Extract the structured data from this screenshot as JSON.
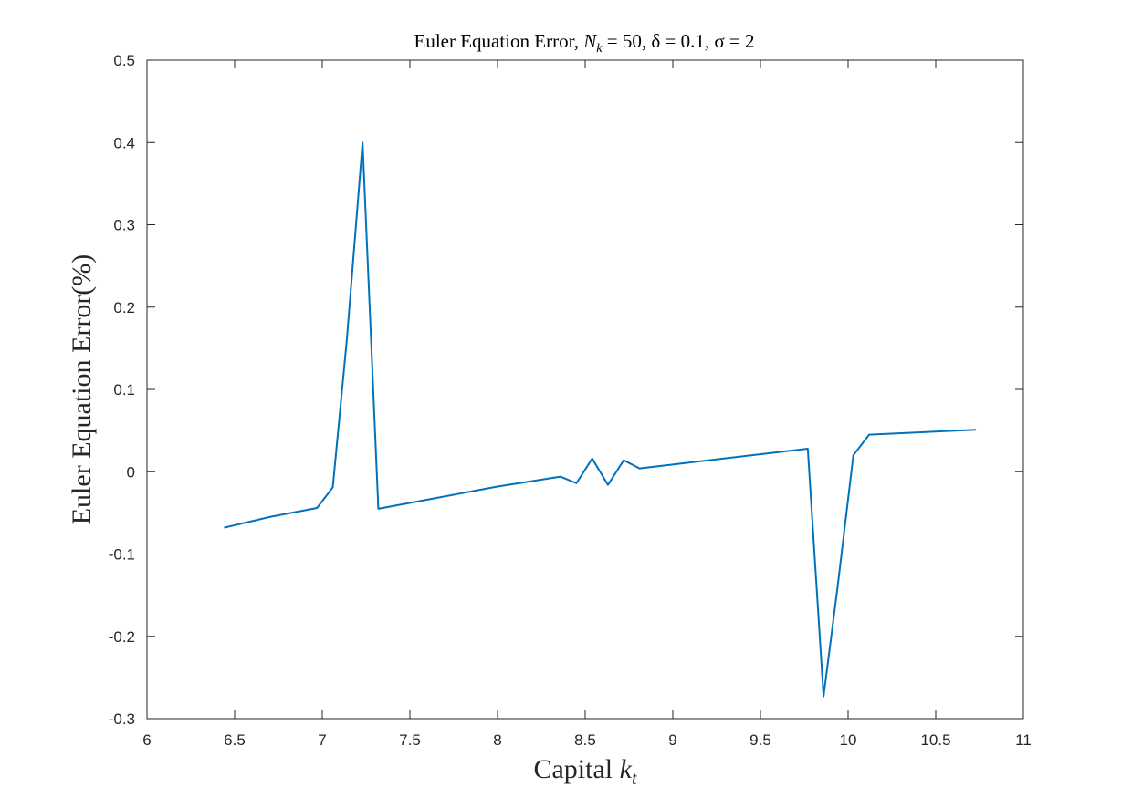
{
  "chart_data": {
    "type": "line",
    "title": "Euler Equation Error, N_k = 50, δ = 0.1, σ = 2",
    "title_parts": {
      "prefix": "Euler Equation Error, ",
      "n_main": "N",
      "n_sub": "k",
      "rest": " = 50, δ = 0.1, σ = 2"
    },
    "xlabel": "Capital k_t",
    "xlabel_parts": {
      "prefix": "Capital ",
      "k_main": "k",
      "k_sub": "t"
    },
    "ylabel": "Euler Equation Error(%)",
    "xlim": [
      6,
      11
    ],
    "ylim": [
      -0.3,
      0.5
    ],
    "xticks": [
      6,
      6.5,
      7,
      7.5,
      8,
      8.5,
      9,
      9.5,
      10,
      10.5,
      11
    ],
    "xtick_labels": [
      "6",
      "6.5",
      "7",
      "7.5",
      "8",
      "8.5",
      "9",
      "9.5",
      "10",
      "10.5",
      "11"
    ],
    "yticks": [
      -0.3,
      -0.2,
      -0.1,
      0,
      0.1,
      0.2,
      0.3,
      0.4,
      0.5
    ],
    "ytick_labels": [
      "-0.3",
      "-0.2",
      "-0.1",
      "0",
      "0.1",
      "0.2",
      "0.3",
      "0.4",
      "0.5"
    ],
    "grid": false,
    "line_color": "#0072BD",
    "series": [
      {
        "x": [
          6.44,
          6.7,
          6.97,
          7.06,
          7.14,
          7.23,
          7.32,
          8.0,
          8.36,
          8.45,
          8.54,
          8.63,
          8.72,
          8.81,
          9.77,
          9.86,
          9.94,
          10.03,
          10.12,
          10.73
        ],
        "y": [
          -0.068,
          -0.055,
          -0.044,
          -0.019,
          0.16,
          0.4,
          -0.045,
          -0.018,
          -0.006,
          -0.014,
          0.016,
          -0.016,
          0.014,
          0.004,
          0.028,
          -0.273,
          -0.14,
          0.02,
          0.045,
          0.051
        ]
      }
    ]
  }
}
